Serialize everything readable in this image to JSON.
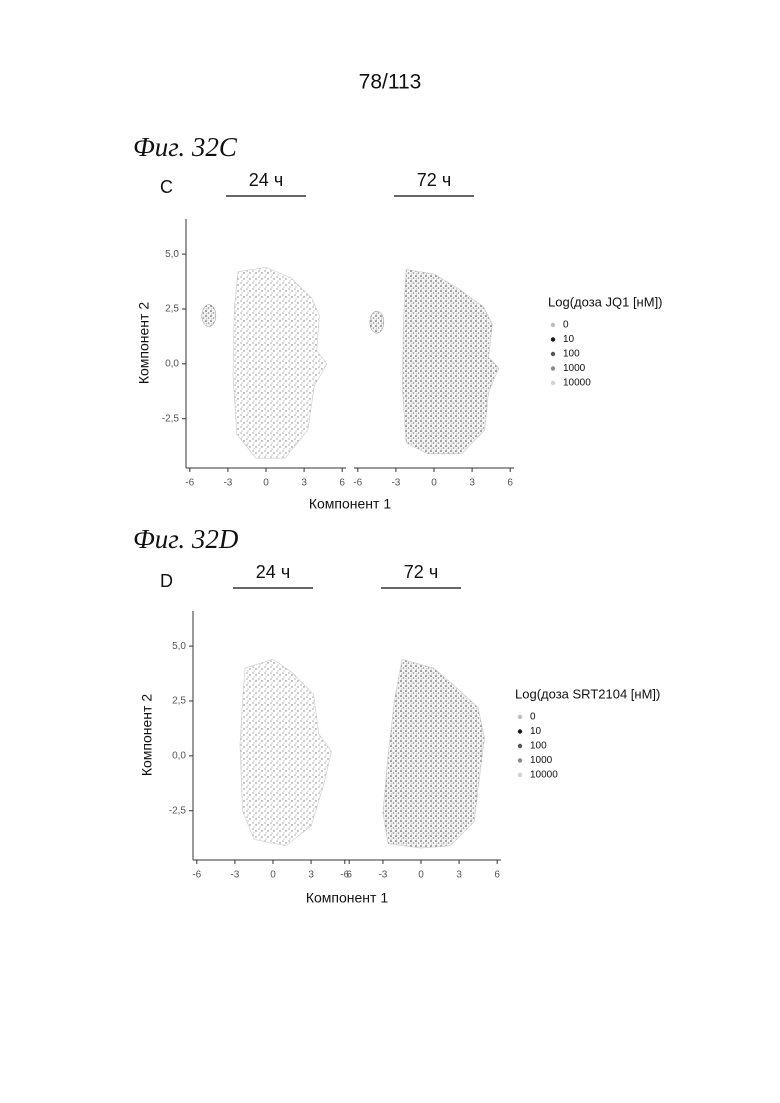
{
  "page_number": "78/113",
  "figures": [
    {
      "label": "Фиг. 32C",
      "panel": "C",
      "timepoints": [
        "24 ч",
        "72 ч"
      ],
      "x_label": "Компонент 1",
      "y_label": "Компонент 2",
      "xlim": [
        -6.3,
        6.3
      ],
      "xticks": [
        -6,
        -3,
        0,
        3,
        6
      ],
      "ylim": [
        -4.7,
        6.6
      ],
      "yticks": [
        {
          "value": 5,
          "label": "5,0"
        },
        {
          "value": 2.5,
          "label": "2,5"
        },
        {
          "value": 0,
          "label": "0,0"
        },
        {
          "value": -2.5,
          "label": "-2,5"
        }
      ],
      "legend_title": "Log(доза JQ1 [нМ])",
      "legend": [
        {
          "name": "0",
          "color": "#bdbdbd"
        },
        {
          "name": "10",
          "color": "#1a1a1a"
        },
        {
          "name": "100",
          "color": "#555555"
        },
        {
          "name": "1000",
          "color": "#8a8a8a"
        },
        {
          "name": "10000",
          "color": "#d2d2d2"
        }
      ]
    },
    {
      "label": "Фиг. 32D",
      "panel": "D",
      "timepoints": [
        "24 ч",
        "72 ч"
      ],
      "x_label": "Компонент 1",
      "y_label": "Компонент 2",
      "xlim": [
        -6.3,
        6.3
      ],
      "xticks": [
        -6,
        -3,
        0,
        3,
        6
      ],
      "ylim": [
        -4.7,
        6.6
      ],
      "yticks": [
        {
          "value": 5,
          "label": "5,0"
        },
        {
          "value": 2.5,
          "label": "2,5"
        },
        {
          "value": 0,
          "label": "0,0"
        },
        {
          "value": -2.5,
          "label": "-2,5"
        }
      ],
      "legend_title": "Log(доза SRT2104 [нМ])",
      "legend": [
        {
          "name": "0",
          "color": "#bdbdbd"
        },
        {
          "name": "10",
          "color": "#1a1a1a"
        },
        {
          "name": "100",
          "color": "#555555"
        },
        {
          "name": "1000",
          "color": "#8a8a8a"
        },
        {
          "name": "10000",
          "color": "#d2d2d2"
        }
      ]
    }
  ]
}
